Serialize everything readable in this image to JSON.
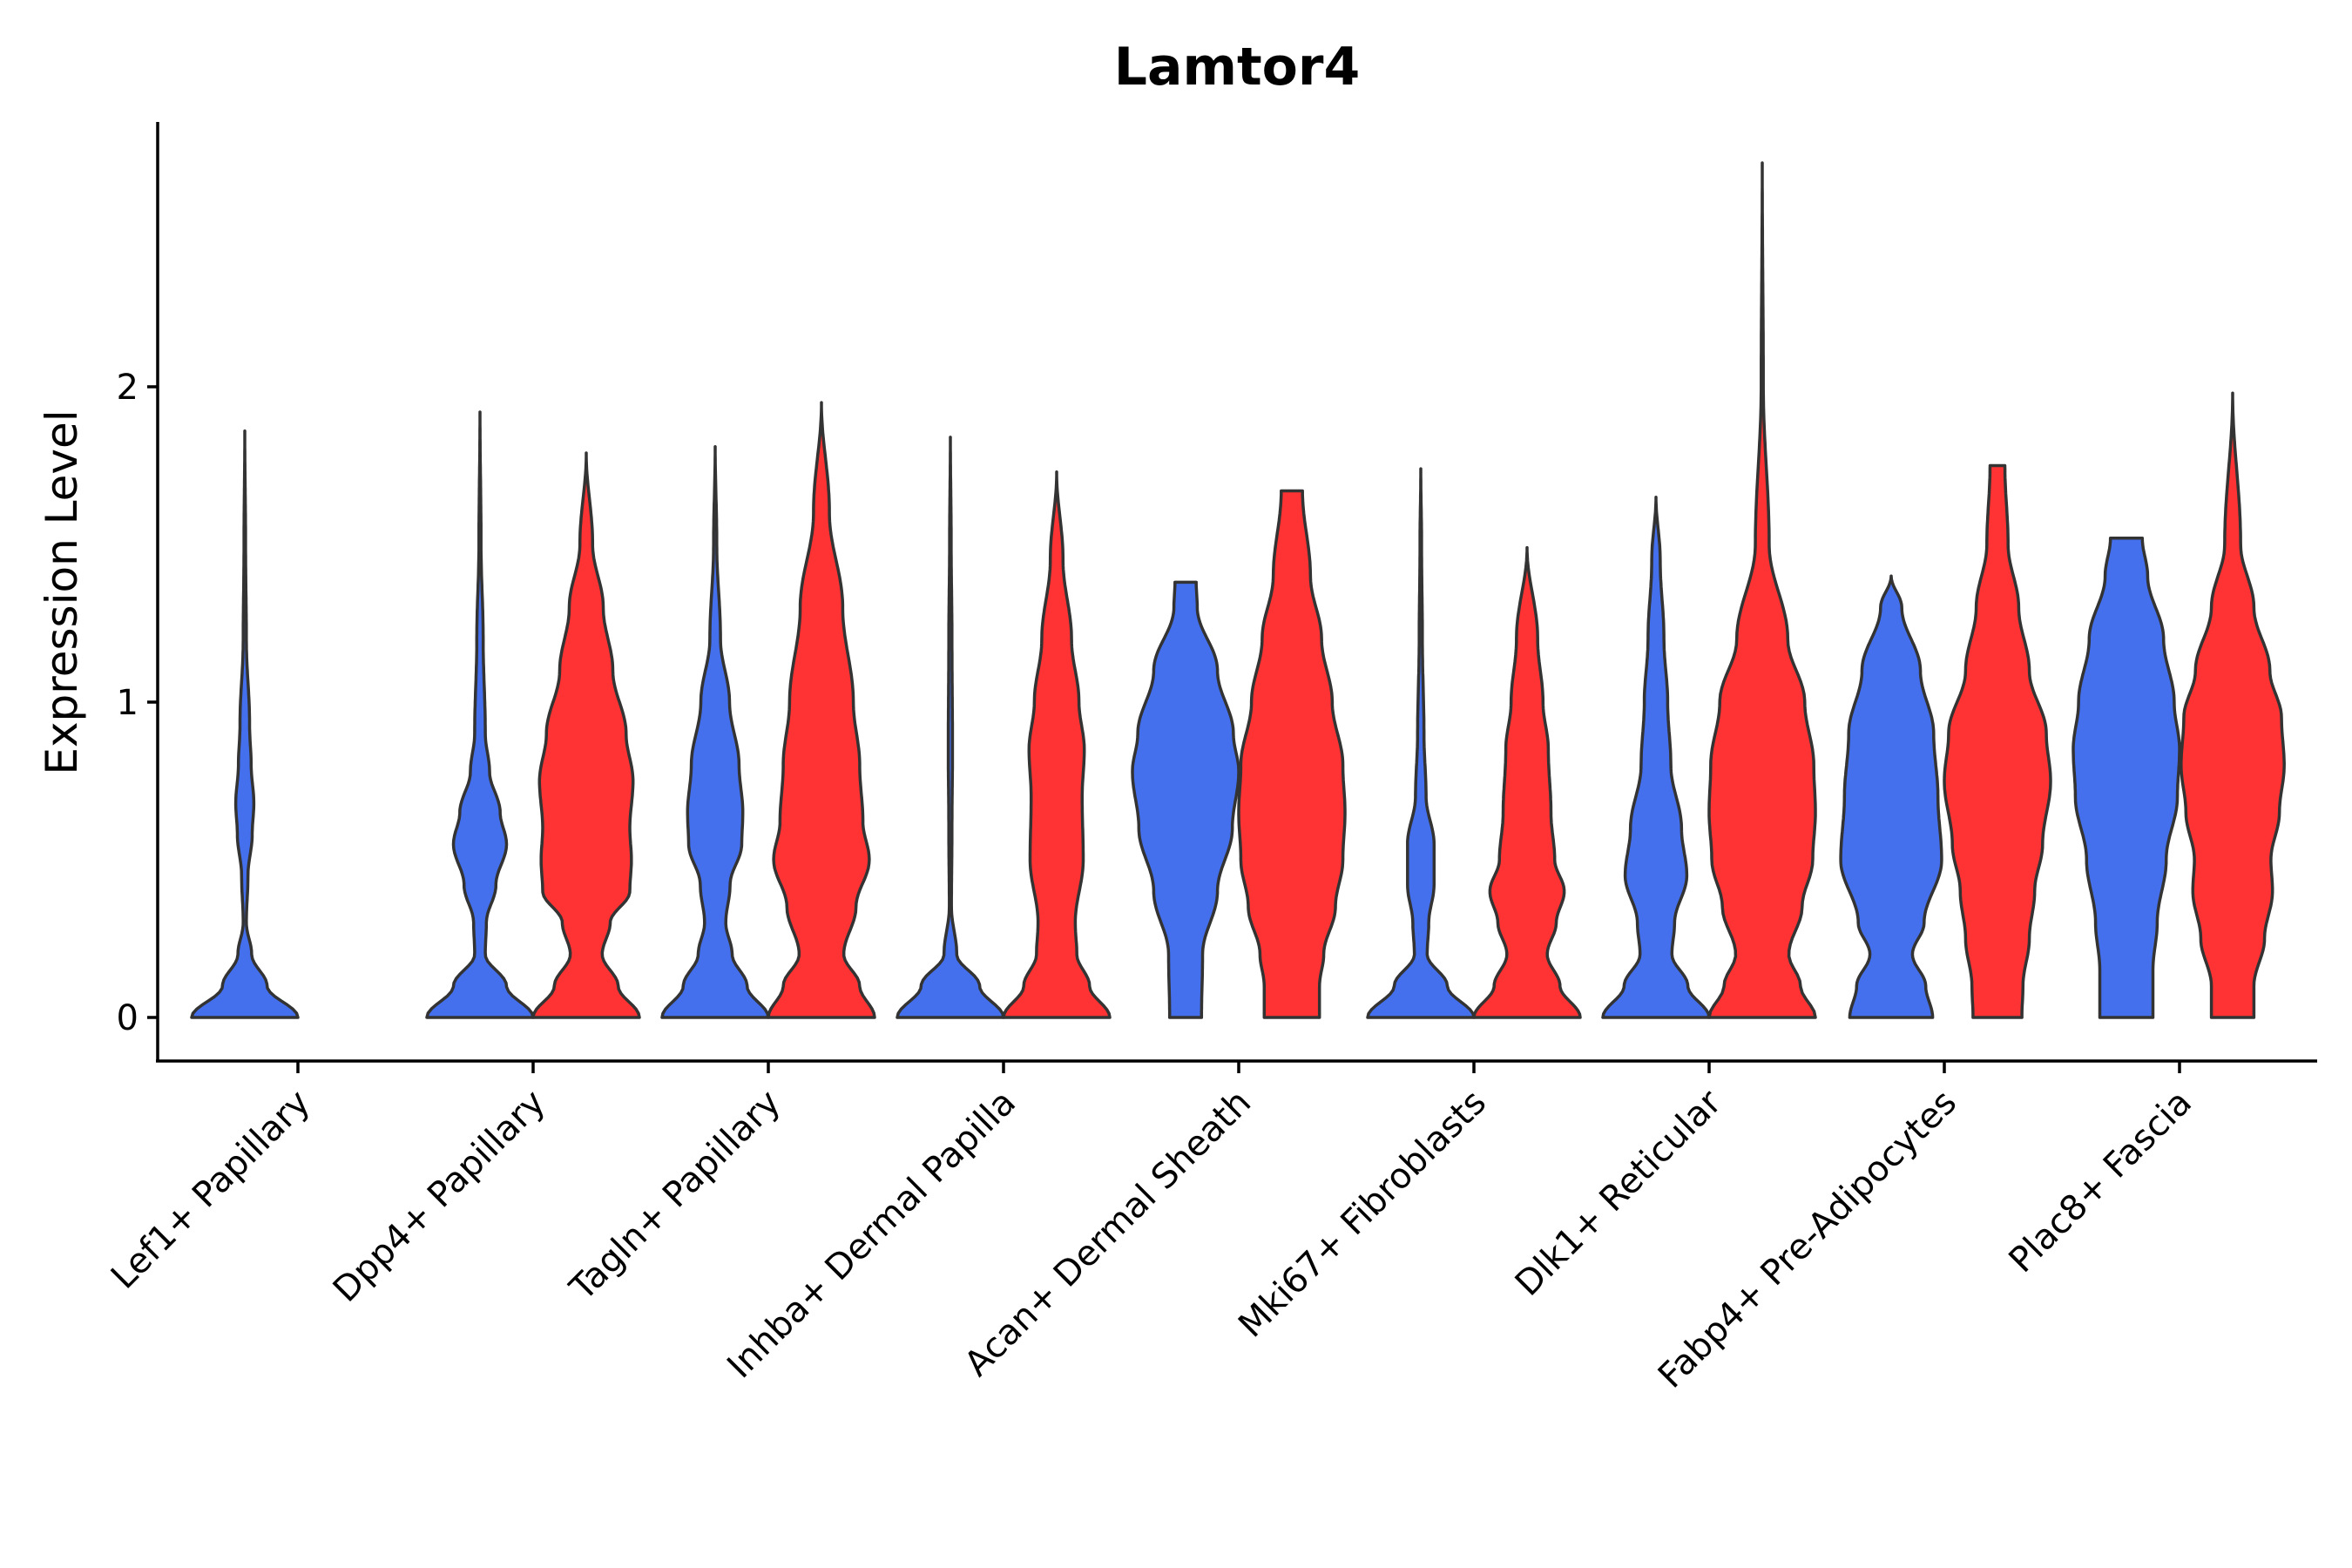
{
  "chart_data": {
    "type": "violin",
    "title": "Lamtor4",
    "xlabel": "",
    "ylabel": "Expression Level",
    "ylim": [
      -0.14,
      2.86
    ],
    "yticks": [
      0,
      1,
      2
    ],
    "grid": false,
    "legend": "none",
    "categories": [
      "Lef1+ Papillary",
      "Dpp4+ Papillary",
      "Tagln+ Papillary",
      "Inhba+ Dermal Papilla",
      "Acan+ Dermal Sheath",
      "Mki67+ Fibroblasts",
      "Dlk1+ Reticular",
      "Fabp4+ Pre-Adipocytes",
      "Plac8+ Fascia"
    ],
    "series": [
      {
        "name": "group1",
        "color": "#4470ee",
        "violins": [
          {
            "category": 0,
            "max": 1.86,
            "profile": [
              [
                0,
                1.0
              ],
              [
                0.1,
                0.42
              ],
              [
                0.2,
                0.13
              ],
              [
                0.3,
                0.03
              ],
              [
                0.45,
                0.06
              ],
              [
                0.58,
                0.14
              ],
              [
                0.68,
                0.17
              ],
              [
                0.8,
                0.12
              ],
              [
                0.93,
                0.09
              ],
              [
                1.2,
                0.03
              ],
              [
                1.5,
                0.015
              ],
              [
                1.86,
                0
              ]
            ]
          },
          {
            "category": 1,
            "max": 1.92,
            "profile": [
              [
                0,
                1.0
              ],
              [
                0.1,
                0.5
              ],
              [
                0.2,
                0.1
              ],
              [
                0.3,
                0.12
              ],
              [
                0.42,
                0.3
              ],
              [
                0.55,
                0.5
              ],
              [
                0.65,
                0.38
              ],
              [
                0.78,
                0.18
              ],
              [
                0.9,
                0.1
              ],
              [
                1.2,
                0.06
              ],
              [
                1.5,
                0.02
              ],
              [
                1.92,
                0
              ]
            ]
          },
          {
            "category": 2,
            "max": 1.81,
            "profile": [
              [
                0,
                1.0
              ],
              [
                0.1,
                0.6
              ],
              [
                0.2,
                0.32
              ],
              [
                0.3,
                0.2
              ],
              [
                0.42,
                0.28
              ],
              [
                0.55,
                0.5
              ],
              [
                0.65,
                0.52
              ],
              [
                0.8,
                0.45
              ],
              [
                1.0,
                0.27
              ],
              [
                1.2,
                0.1
              ],
              [
                1.5,
                0.03
              ],
              [
                1.81,
                0
              ]
            ]
          },
          {
            "category": 3,
            "max": 1.84,
            "profile": [
              [
                0,
                1.0
              ],
              [
                0.1,
                0.55
              ],
              [
                0.2,
                0.12
              ],
              [
                0.35,
                0.02
              ],
              [
                0.6,
                0.03
              ],
              [
                0.85,
                0.04
              ],
              [
                1.2,
                0.03
              ],
              [
                1.5,
                0.015
              ],
              [
                1.84,
                0
              ]
            ]
          },
          {
            "category": 4,
            "max": 1.38,
            "profile": [
              [
                0,
                0.3
              ],
              [
                0.2,
                0.32
              ],
              [
                0.4,
                0.6
              ],
              [
                0.6,
                0.88
              ],
              [
                0.78,
                1.0
              ],
              [
                0.9,
                0.9
              ],
              [
                1.1,
                0.6
              ],
              [
                1.3,
                0.22
              ],
              [
                1.38,
                0.2
              ]
            ]
          },
          {
            "category": 5,
            "max": 1.74,
            "profile": [
              [
                0,
                1.0
              ],
              [
                0.1,
                0.5
              ],
              [
                0.2,
                0.12
              ],
              [
                0.3,
                0.15
              ],
              [
                0.42,
                0.25
              ],
              [
                0.55,
                0.25
              ],
              [
                0.7,
                0.1
              ],
              [
                0.9,
                0.06
              ],
              [
                1.2,
                0.03
              ],
              [
                1.5,
                0.015
              ],
              [
                1.74,
                0
              ]
            ]
          },
          {
            "category": 6,
            "max": 1.65,
            "profile": [
              [
                0,
                1.0
              ],
              [
                0.1,
                0.6
              ],
              [
                0.2,
                0.3
              ],
              [
                0.3,
                0.35
              ],
              [
                0.45,
                0.58
              ],
              [
                0.6,
                0.48
              ],
              [
                0.8,
                0.28
              ],
              [
                1.0,
                0.22
              ],
              [
                1.2,
                0.15
              ],
              [
                1.45,
                0.08
              ],
              [
                1.65,
                0
              ]
            ]
          },
          {
            "category": 7,
            "max": 1.4,
            "profile": [
              [
                0,
                0.78
              ],
              [
                0.1,
                0.65
              ],
              [
                0.2,
                0.4
              ],
              [
                0.3,
                0.62
              ],
              [
                0.5,
                0.95
              ],
              [
                0.7,
                0.88
              ],
              [
                0.9,
                0.8
              ],
              [
                1.1,
                0.55
              ],
              [
                1.3,
                0.2
              ],
              [
                1.4,
                0
              ]
            ]
          },
          {
            "category": 8,
            "max": 1.52,
            "profile": [
              [
                0,
                0.5
              ],
              [
                0.15,
                0.5
              ],
              [
                0.3,
                0.58
              ],
              [
                0.5,
                0.75
              ],
              [
                0.7,
                0.96
              ],
              [
                0.85,
                1.0
              ],
              [
                1.0,
                0.9
              ],
              [
                1.2,
                0.7
              ],
              [
                1.4,
                0.4
              ],
              [
                1.52,
                0.3
              ]
            ]
          }
        ]
      },
      {
        "name": "group2",
        "color": "#ff3333",
        "violins": [
          {
            "category": 1,
            "max": 1.79,
            "profile": [
              [
                0,
                1.0
              ],
              [
                0.1,
                0.6
              ],
              [
                0.2,
                0.3
              ],
              [
                0.3,
                0.45
              ],
              [
                0.4,
                0.82
              ],
              [
                0.5,
                0.85
              ],
              [
                0.6,
                0.82
              ],
              [
                0.75,
                0.88
              ],
              [
                0.9,
                0.75
              ],
              [
                1.1,
                0.5
              ],
              [
                1.3,
                0.32
              ],
              [
                1.5,
                0.12
              ],
              [
                1.79,
                0
              ]
            ]
          },
          {
            "category": 2,
            "max": 1.95,
            "profile": [
              [
                0,
                1.0
              ],
              [
                0.1,
                0.72
              ],
              [
                0.2,
                0.42
              ],
              [
                0.35,
                0.65
              ],
              [
                0.5,
                0.9
              ],
              [
                0.62,
                0.78
              ],
              [
                0.8,
                0.72
              ],
              [
                1.0,
                0.6
              ],
              [
                1.3,
                0.4
              ],
              [
                1.6,
                0.15
              ],
              [
                1.95,
                0
              ]
            ]
          },
          {
            "category": 3,
            "max": 1.73,
            "profile": [
              [
                0,
                1.0
              ],
              [
                0.1,
                0.62
              ],
              [
                0.2,
                0.38
              ],
              [
                0.3,
                0.35
              ],
              [
                0.5,
                0.5
              ],
              [
                0.7,
                0.48
              ],
              [
                0.85,
                0.52
              ],
              [
                1.0,
                0.42
              ],
              [
                1.2,
                0.28
              ],
              [
                1.45,
                0.12
              ],
              [
                1.73,
                0
              ]
            ]
          },
          {
            "category": 4,
            "max": 1.67,
            "profile": [
              [
                0,
                0.52
              ],
              [
                0.1,
                0.52
              ],
              [
                0.2,
                0.6
              ],
              [
                0.35,
                0.82
              ],
              [
                0.5,
                0.96
              ],
              [
                0.65,
                1.0
              ],
              [
                0.8,
                0.96
              ],
              [
                1.0,
                0.76
              ],
              [
                1.2,
                0.56
              ],
              [
                1.4,
                0.35
              ],
              [
                1.67,
                0.2
              ]
            ]
          },
          {
            "category": 5,
            "max": 1.49,
            "profile": [
              [
                0,
                1.0
              ],
              [
                0.1,
                0.62
              ],
              [
                0.2,
                0.38
              ],
              [
                0.3,
                0.55
              ],
              [
                0.4,
                0.7
              ],
              [
                0.5,
                0.52
              ],
              [
                0.65,
                0.45
              ],
              [
                0.85,
                0.4
              ],
              [
                1.0,
                0.3
              ],
              [
                1.2,
                0.2
              ],
              [
                1.49,
                0
              ]
            ]
          },
          {
            "category": 6,
            "max": 2.71,
            "profile": [
              [
                0,
                1.0
              ],
              [
                0.1,
                0.72
              ],
              [
                0.2,
                0.5
              ],
              [
                0.35,
                0.75
              ],
              [
                0.5,
                0.95
              ],
              [
                0.65,
                1.0
              ],
              [
                0.8,
                0.97
              ],
              [
                1.0,
                0.8
              ],
              [
                1.2,
                0.48
              ],
              [
                1.5,
                0.13
              ],
              [
                2.0,
                0.02
              ],
              [
                2.71,
                0
              ]
            ]
          },
          {
            "category": 7,
            "max": 1.75,
            "profile": [
              [
                0,
                0.46
              ],
              [
                0.1,
                0.48
              ],
              [
                0.25,
                0.6
              ],
              [
                0.4,
                0.7
              ],
              [
                0.55,
                0.85
              ],
              [
                0.75,
                1.0
              ],
              [
                0.9,
                0.92
              ],
              [
                1.1,
                0.6
              ],
              [
                1.3,
                0.4
              ],
              [
                1.5,
                0.2
              ],
              [
                1.75,
                0.14
              ]
            ]
          },
          {
            "category": 8,
            "max": 1.98,
            "profile": [
              [
                0,
                0.4
              ],
              [
                0.1,
                0.4
              ],
              [
                0.25,
                0.6
              ],
              [
                0.4,
                0.75
              ],
              [
                0.5,
                0.72
              ],
              [
                0.65,
                0.88
              ],
              [
                0.8,
                0.97
              ],
              [
                0.95,
                0.92
              ],
              [
                1.1,
                0.7
              ],
              [
                1.3,
                0.4
              ],
              [
                1.5,
                0.15
              ],
              [
                1.98,
                0
              ]
            ]
          }
        ]
      }
    ]
  }
}
